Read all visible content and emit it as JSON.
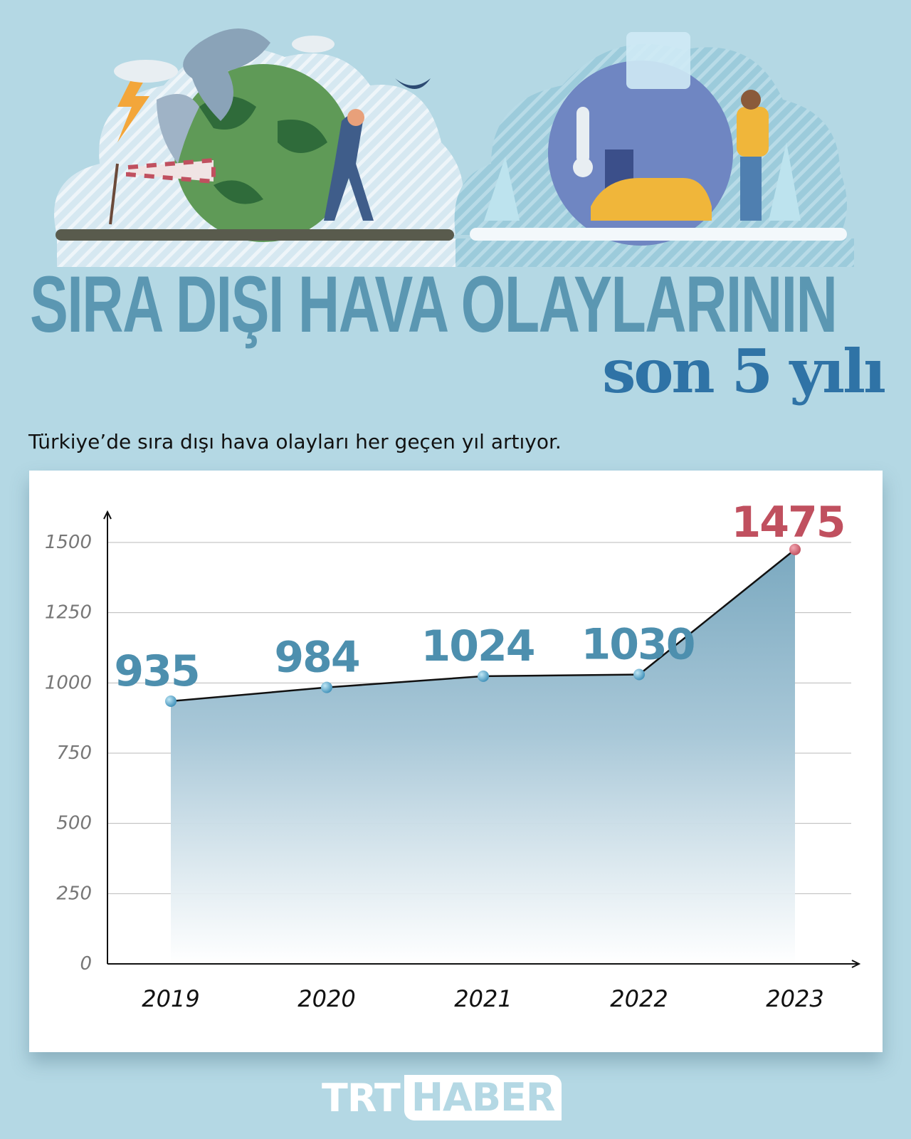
{
  "header": {
    "title_line1": "SIRA DIŞI HAVA OLAYLARININ",
    "title_line2": "son 5 yılı",
    "subtitle": "Türkiye’de sıra dışı hava olayları her geçen yıl artıyor."
  },
  "colors": {
    "background": "#b4d8e4",
    "title": "#5b97b2",
    "title_accent": "#2f73a6",
    "data_label": "#4d8fae",
    "highlight": "#c0505f",
    "area": "#7ba9c0"
  },
  "illustration": {
    "left_scene": "storm-wind-globe",
    "right_scene": "snow-cold-globe"
  },
  "chart_data": {
    "type": "area",
    "categories": [
      "2019",
      "2020",
      "2021",
      "2022",
      "2023"
    ],
    "values": [
      935,
      984,
      1024,
      1030,
      1475
    ],
    "data_labels": [
      "935",
      "984",
      "1024",
      "1030",
      "1475"
    ],
    "highlight_index": 4,
    "yticks": [
      0,
      250,
      500,
      750,
      1000,
      1250,
      1500
    ],
    "ylim": [
      0,
      1500
    ],
    "grid": true,
    "xlabel": "",
    "ylabel": ""
  },
  "footer": {
    "logo_part1": "TRT",
    "logo_part2": "HABER"
  }
}
